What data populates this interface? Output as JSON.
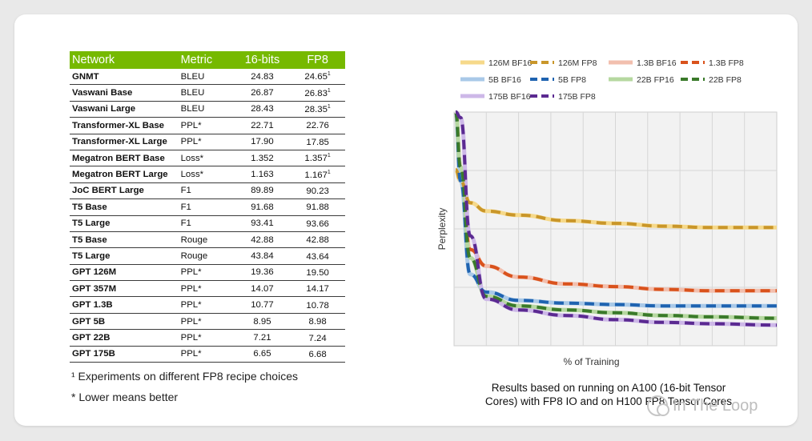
{
  "table": {
    "headers": [
      "Network",
      "Metric",
      "16-bits",
      "FP8"
    ],
    "rows": [
      [
        "GNMT",
        "BLEU",
        "24.83",
        "24.65",
        "1"
      ],
      [
        "Vaswani Base",
        "BLEU",
        "26.87",
        "26.83",
        "1"
      ],
      [
        "Vaswani Large",
        "BLEU",
        "28.43",
        "28.35",
        "1"
      ],
      [
        "Transformer-XL Base",
        "PPL*",
        "22.71",
        "22.76",
        ""
      ],
      [
        "Transformer-XL Large",
        "PPL*",
        "17.90",
        "17.85",
        ""
      ],
      [
        "Megatron BERT Base",
        "Loss*",
        "1.352",
        "1.357",
        "1"
      ],
      [
        "Megatron BERT Large",
        "Loss*",
        "1.163",
        "1.167",
        "1"
      ],
      [
        "JoC BERT Large",
        "F1",
        "89.89",
        "90.23",
        ""
      ],
      [
        "T5 Base",
        "F1",
        "91.68",
        "91.88",
        ""
      ],
      [
        "T5 Large",
        "F1",
        "93.41",
        "93.66",
        ""
      ],
      [
        "T5 Base",
        "Rouge",
        "42.88",
        "42.88",
        ""
      ],
      [
        "T5 Large",
        "Rouge",
        "43.84",
        "43.64",
        ""
      ],
      [
        "GPT 126M",
        "PPL*",
        "19.36",
        "19.50",
        ""
      ],
      [
        "GPT 357M",
        "PPL*",
        "14.07",
        "14.17",
        ""
      ],
      [
        "GPT 1.3B",
        "PPL*",
        "10.77",
        "10.78",
        ""
      ],
      [
        "GPT 5B",
        "PPL*",
        "8.95",
        "8.98",
        ""
      ],
      [
        "GPT 22B",
        "PPL*",
        "7.21",
        "7.24",
        ""
      ],
      [
        "GPT 175B",
        "PPL*",
        "6.65",
        "6.68",
        ""
      ]
    ]
  },
  "notes": {
    "note1": "¹ Experiments on different FP8 recipe choices",
    "note2": "* Lower means better"
  },
  "caption": {
    "line1": "Results based on running on A100 (16-bit Tensor",
    "line2": "Cores) with FP8 IO and on H100 FP8 Tensor Cores"
  },
  "watermark": {
    "text": "In The Loop",
    "icon": "wechat-icon"
  },
  "chart_data": {
    "type": "line",
    "xlabel": "% of Training",
    "ylabel": "Perplexity",
    "grid": true,
    "legend_position": "top",
    "x": [
      0.5,
      2,
      5,
      10,
      20,
      35,
      50,
      65,
      80,
      100
    ],
    "series": [
      {
        "name": "126M BF16",
        "color": "#f6d98a",
        "style": "solid",
        "values": [
          7.4,
          7.0,
          6.2,
          5.9,
          5.75,
          5.55,
          5.45,
          5.35,
          5.3,
          5.3
        ]
      },
      {
        "name": "126M FP8",
        "color": "#c9962a",
        "style": "dashed",
        "values": [
          7.4,
          7.0,
          6.2,
          5.9,
          5.75,
          5.55,
          5.45,
          5.35,
          5.3,
          5.3
        ]
      },
      {
        "name": "1.3B BF16",
        "color": "#f2bfae",
        "style": "solid",
        "values": [
          9.5,
          7.5,
          4.5,
          3.9,
          3.5,
          3.25,
          3.15,
          3.05,
          3.0,
          3.0
        ]
      },
      {
        "name": "1.3B FP8",
        "color": "#d9521c",
        "style": "dashed",
        "values": [
          9.5,
          7.5,
          4.5,
          3.9,
          3.5,
          3.25,
          3.15,
          3.05,
          3.0,
          3.0
        ]
      },
      {
        "name": "5B BF16",
        "color": "#a9c9e8",
        "style": "solid",
        "values": [
          9.5,
          7.0,
          3.6,
          2.95,
          2.65,
          2.55,
          2.5,
          2.45,
          2.45,
          2.45
        ]
      },
      {
        "name": "5B FP8",
        "color": "#1f63b0",
        "style": "dashed",
        "values": [
          9.5,
          7.0,
          3.6,
          2.95,
          2.65,
          2.55,
          2.5,
          2.45,
          2.45,
          2.45
        ]
      },
      {
        "name": "22B FP16",
        "color": "#b6d8a0",
        "style": "solid",
        "values": [
          9.5,
          7.5,
          4.2,
          2.8,
          2.45,
          2.3,
          2.2,
          2.1,
          2.05,
          2.0
        ]
      },
      {
        "name": "22B FP8",
        "color": "#3a7a2a",
        "style": "dashed",
        "values": [
          9.5,
          7.5,
          4.2,
          2.8,
          2.45,
          2.3,
          2.2,
          2.1,
          2.05,
          2.0
        ]
      },
      {
        "name": "175B BF16",
        "color": "#cdb8e8",
        "style": "solid",
        "values": [
          9.5,
          9.3,
          5.0,
          2.7,
          2.3,
          2.1,
          1.95,
          1.85,
          1.8,
          1.75
        ]
      },
      {
        "name": "175B FP8",
        "color": "#5b2a91",
        "style": "dashed",
        "values": [
          9.5,
          9.3,
          5.0,
          2.7,
          2.3,
          2.1,
          1.95,
          1.85,
          1.8,
          1.75
        ]
      }
    ],
    "xlim": [
      0,
      100
    ],
    "ylim": [
      1,
      9.5
    ]
  }
}
